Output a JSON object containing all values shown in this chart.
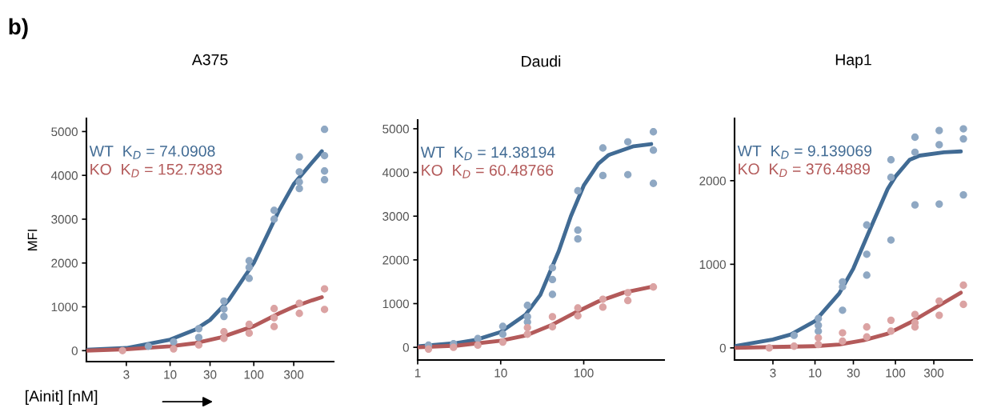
{
  "chart_data": [
    {
      "type": "scatter",
      "title": "A375",
      "xlabel": "[Ainit] [nM]",
      "ylabel": "MFI",
      "log": "x",
      "grid": false,
      "xlim": [
        1,
        900
      ],
      "xticks": [
        3,
        10,
        30,
        100,
        300
      ],
      "ylim": [
        -250,
        5300
      ],
      "yticks": [
        0,
        1000,
        2000,
        3000,
        4000,
        5000
      ],
      "annotations": [
        "WT  K$_{D}$ = 74.0908",
        "KO  K$_{D}$ = 152.7383",
        "b)"
      ],
      "series": [
        {
          "color": "#8fa8c3",
          "x": [
            5.5,
            11,
            22,
            22,
            44,
            44,
            44,
            88,
            88,
            88,
            175,
            175,
            350,
            350,
            350,
            350,
            700,
            700,
            700,
            700
          ],
          "values": [
            100,
            200,
            500,
            300,
            1130,
            950,
            780,
            2050,
            1900,
            1650,
            3200,
            3000,
            4420,
            4080,
            3850,
            3700,
            5050,
            4450,
            4100,
            3900
          ]
        },
        {
          "color": "#dba3a3",
          "x": [
            2.7,
            11,
            22,
            44,
            44,
            88,
            88,
            175,
            175,
            175,
            350,
            350,
            700,
            700
          ],
          "values": [
            0,
            40,
            130,
            430,
            280,
            600,
            400,
            960,
            750,
            550,
            1080,
            850,
            1410,
            940
          ]
        },
        {
          "type": "line",
          "color": "#416b94",
          "x": [
            1,
            3,
            10,
            20,
            30,
            50,
            100,
            150,
            200,
            300,
            500,
            650
          ],
          "values": [
            20,
            60,
            250,
            480,
            700,
            1150,
            2000,
            2700,
            3200,
            3800,
            4300,
            4550
          ]
        },
        {
          "type": "line",
          "color": "#b35a5a",
          "x": [
            1,
            3,
            10,
            20,
            40,
            100,
            200,
            300,
            500,
            650
          ],
          "values": [
            0,
            30,
            100,
            170,
            300,
            560,
            850,
            1000,
            1150,
            1220
          ]
        }
      ]
    },
    {
      "type": "scatter",
      "title": "Daudi",
      "log": "x",
      "grid": false,
      "xlim": [
        1,
        930
      ],
      "xticks": [
        1,
        10,
        100
      ],
      "ylim": [
        -290,
        5200
      ],
      "yticks": [
        0,
        1000,
        2000,
        3000,
        4000,
        5000
      ],
      "annotations": [
        "WT  K$_{D}$ = 14.38194",
        "KO  K$_{D}$ = 60.48766"
      ],
      "series": [
        {
          "color": "#8fa8c3",
          "x": [
            1.35,
            2.7,
            5.3,
            10.6,
            10.6,
            21,
            21,
            21,
            42,
            42,
            42,
            85,
            85,
            85,
            170,
            170,
            340,
            340,
            690,
            690,
            690
          ],
          "values": [
            50,
            80,
            200,
            480,
            300,
            960,
            700,
            580,
            1820,
            1550,
            1210,
            3580,
            2680,
            2480,
            4560,
            3930,
            4700,
            3950,
            4930,
            4510,
            3750
          ]
        },
        {
          "color": "#dba3a3",
          "x": [
            1.35,
            2.7,
            5.3,
            10.6,
            21,
            21,
            42,
            42,
            85,
            85,
            170,
            170,
            340,
            340,
            690
          ],
          "values": [
            -40,
            0,
            50,
            120,
            450,
            300,
            700,
            470,
            900,
            720,
            1100,
            920,
            1250,
            1070,
            1380
          ]
        },
        {
          "type": "line",
          "color": "#416b94",
          "x": [
            1,
            3,
            5,
            10,
            20,
            30,
            50,
            70,
            100,
            150,
            200,
            400,
            650
          ],
          "values": [
            20,
            100,
            170,
            350,
            750,
            1200,
            2200,
            3000,
            3700,
            4200,
            4400,
            4600,
            4650
          ]
        },
        {
          "type": "line",
          "color": "#b35a5a",
          "x": [
            1,
            3,
            10,
            20,
            40,
            80,
            150,
            300,
            650
          ],
          "values": [
            0,
            40,
            150,
            270,
            500,
            800,
            1050,
            1250,
            1380
          ]
        }
      ]
    },
    {
      "type": "scatter",
      "title": "Hap1",
      "log": "x",
      "grid": false,
      "xlim": [
        1,
        900
      ],
      "xticks": [
        3,
        10,
        30,
        100,
        300
      ],
      "ylim": [
        -145,
        2745
      ],
      "yticks": [
        0,
        1000,
        2000
      ],
      "annotations": [
        "WT  K$_{D}$ = 9.139069",
        "KO  K$_{D}$ = 376.4889"
      ],
      "series": [
        {
          "color": "#8fa8c3",
          "x": [
            5.5,
            11,
            11,
            11,
            22,
            22,
            22,
            44,
            44,
            44,
            88,
            88,
            88,
            175,
            175,
            175,
            350,
            350,
            350,
            700,
            700,
            700
          ],
          "values": [
            150,
            350,
            270,
            200,
            790,
            730,
            450,
            1470,
            1120,
            870,
            2250,
            2040,
            1290,
            2520,
            2340,
            1710,
            2600,
            2430,
            1720,
            2620,
            2500,
            1830
          ]
        },
        {
          "color": "#dba3a3",
          "x": [
            2.7,
            5.5,
            11,
            11,
            22,
            22,
            44,
            44,
            88,
            88,
            175,
            175,
            175,
            350,
            350,
            700,
            700
          ],
          "values": [
            0,
            20,
            120,
            40,
            180,
            80,
            250,
            130,
            330,
            200,
            400,
            300,
            250,
            560,
            390,
            750,
            520
          ]
        },
        {
          "type": "line",
          "color": "#416b94",
          "x": [
            1,
            1.5,
            3,
            5,
            10,
            20,
            30,
            50,
            80,
            100,
            150,
            200,
            400,
            650
          ],
          "values": [
            20,
            50,
            100,
            160,
            320,
            650,
            950,
            1450,
            1900,
            2050,
            2250,
            2300,
            2340,
            2350
          ]
        },
        {
          "type": "line",
          "color": "#b35a5a",
          "x": [
            1,
            3,
            10,
            20,
            40,
            80,
            150,
            300,
            650
          ],
          "values": [
            0,
            10,
            20,
            40,
            90,
            170,
            300,
            470,
            660
          ]
        }
      ]
    }
  ]
}
